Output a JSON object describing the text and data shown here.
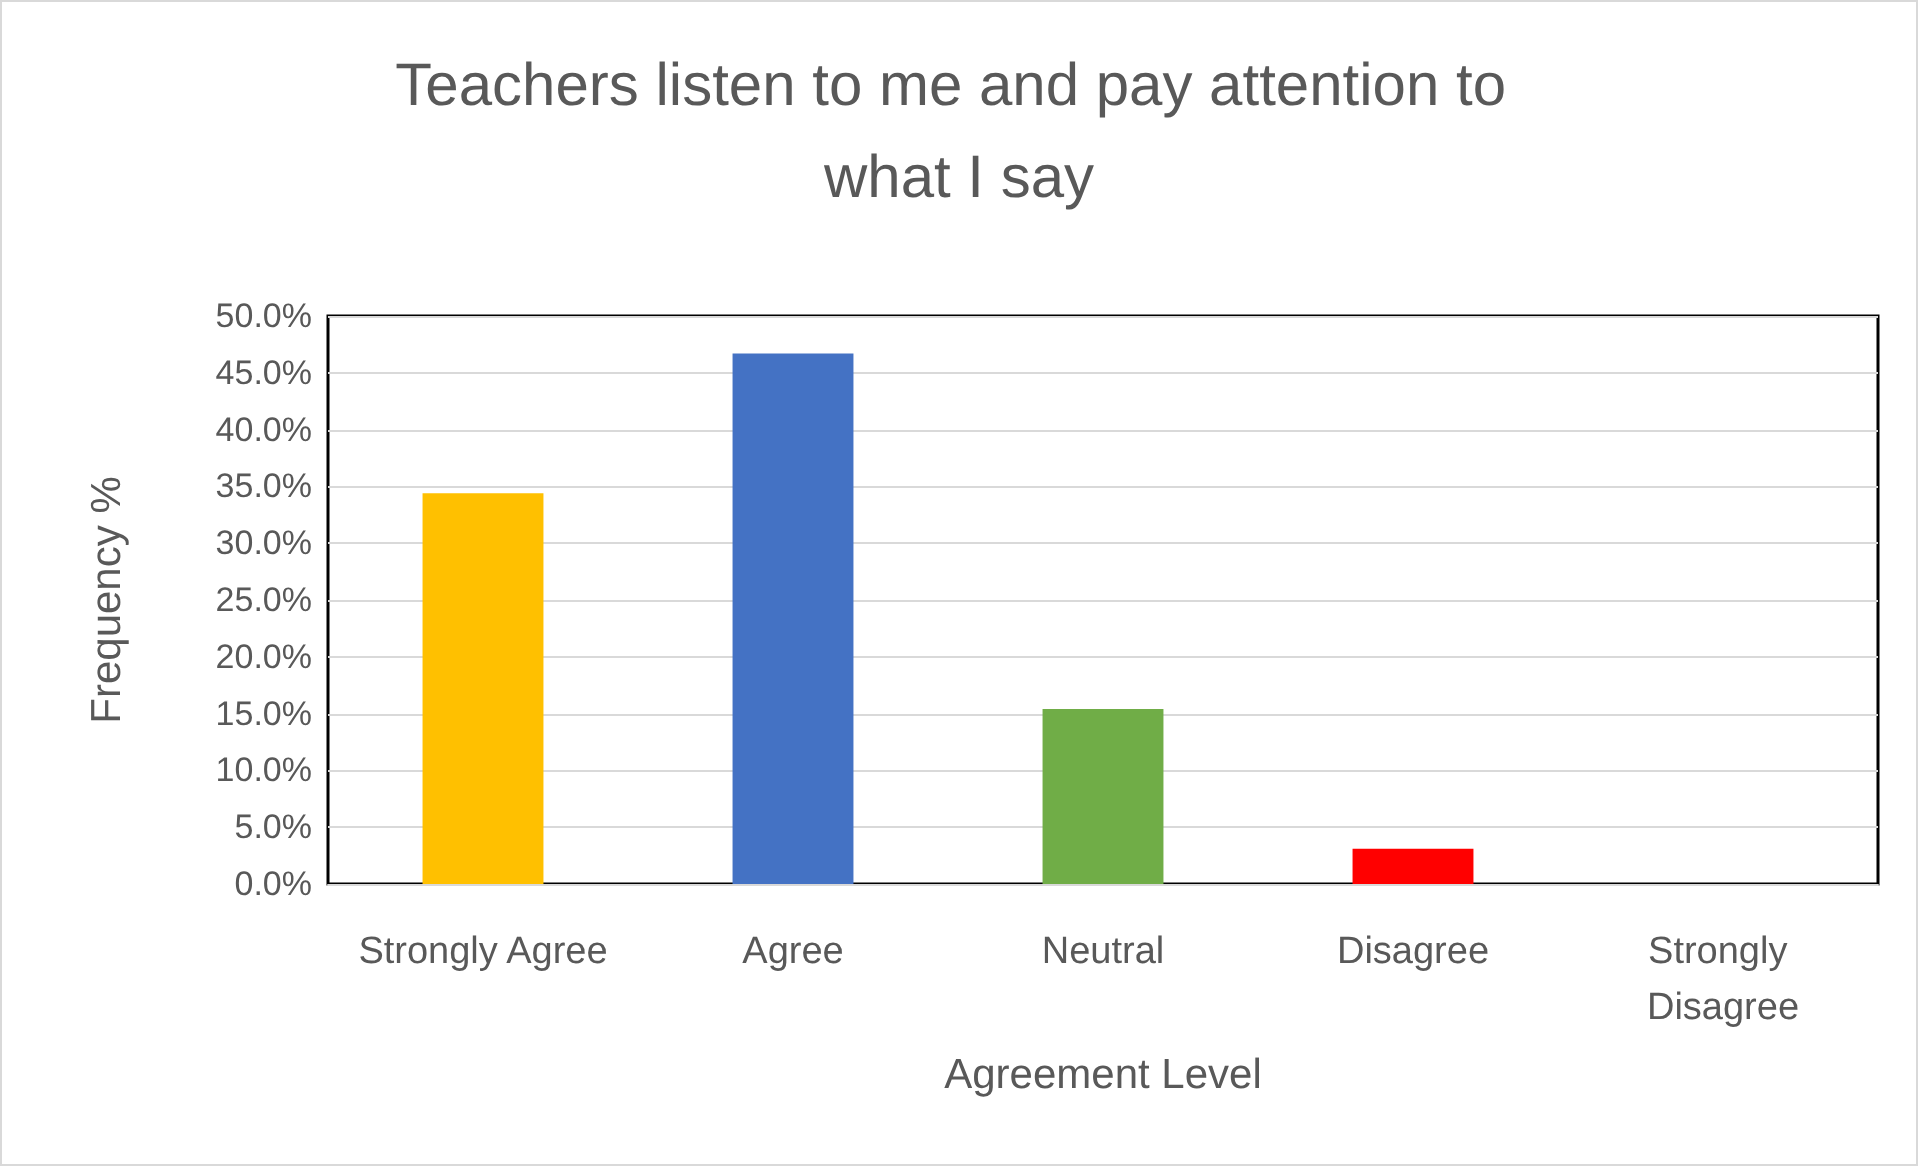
{
  "chart_data": {
    "type": "bar",
    "title": "Teachers listen to me and pay attention to what I say",
    "xlabel": "Agreement Level",
    "ylabel": "Frequency %",
    "categories": [
      "Strongly Agree",
      "Agree",
      "Neutral",
      "Disagree",
      "Strongly Disagree"
    ],
    "values": [
      34.4,
      46.7,
      15.4,
      3.1,
      0
    ],
    "colors": [
      "#ffc000",
      "#4472c4",
      "#70ad47",
      "#ff0000",
      "#a5a5a5"
    ],
    "ylim": [
      0,
      50
    ],
    "yticks": [
      {
        "value": 0,
        "label": "0.0%"
      },
      {
        "value": 5,
        "label": "5.0%"
      },
      {
        "value": 10,
        "label": "10.0%"
      },
      {
        "value": 15,
        "label": "15.0%"
      },
      {
        "value": 20,
        "label": "20.0%"
      },
      {
        "value": 25,
        "label": "25.0%"
      },
      {
        "value": 30,
        "label": "30.0%"
      },
      {
        "value": 35,
        "label": "35.0%"
      },
      {
        "value": 40,
        "label": "40.0%"
      },
      {
        "value": 45,
        "label": "45.0%"
      },
      {
        "value": 50,
        "label": "50.0%"
      }
    ],
    "grid": "y"
  }
}
